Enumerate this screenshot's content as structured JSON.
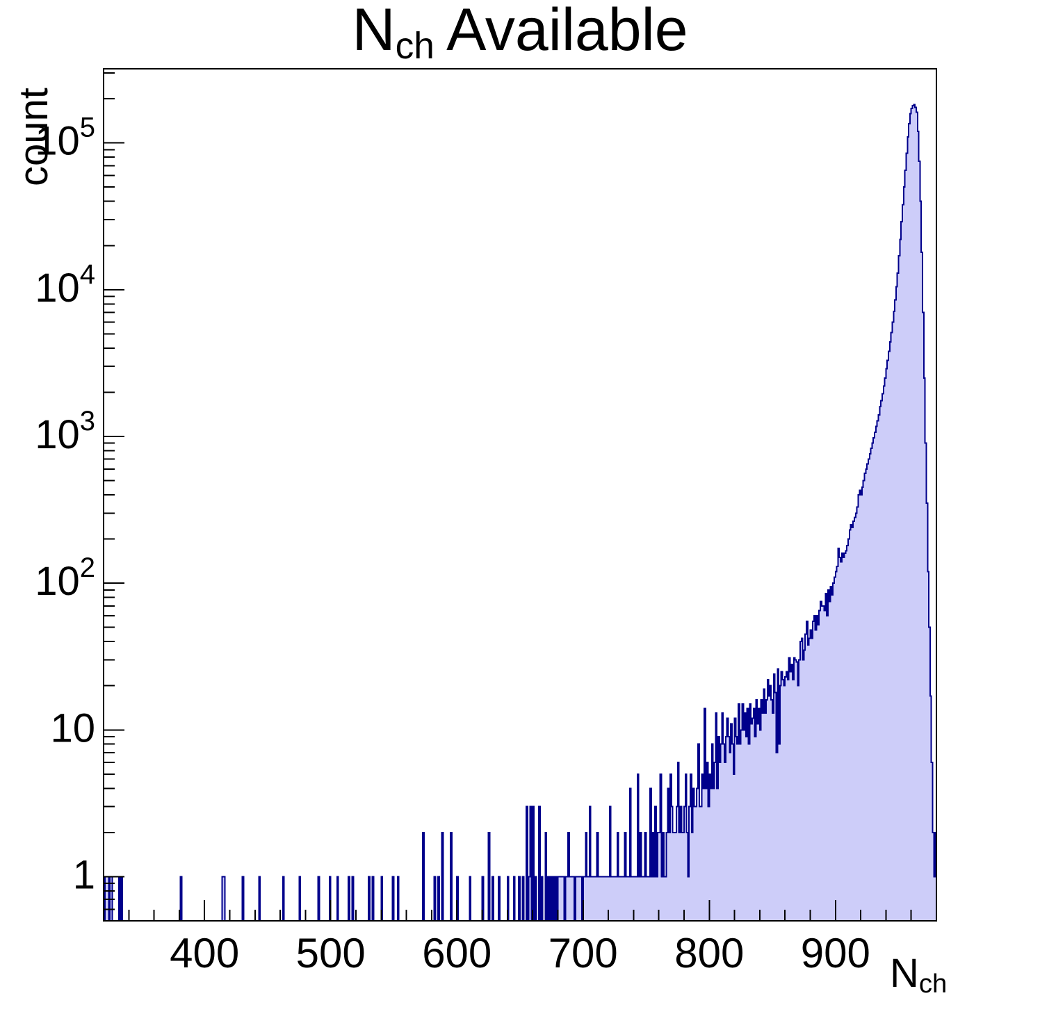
{
  "title": {
    "prefix": "N",
    "subscript": "ch",
    "suffix": "Available"
  },
  "y_axis": {
    "label": "count",
    "log": true,
    "ticks": [
      {
        "value": 1,
        "text": "1"
      },
      {
        "value": 10,
        "text": "10"
      },
      {
        "value": 100,
        "text": "10",
        "exp": "2"
      },
      {
        "value": 1000,
        "text": "10",
        "exp": "3"
      },
      {
        "value": 10000,
        "text": "10",
        "exp": "4"
      },
      {
        "value": 100000,
        "text": "10",
        "exp": "5"
      }
    ]
  },
  "x_axis": {
    "label_prefix": "N",
    "label_subscript": "ch",
    "minor_step": 20,
    "ticks": [
      {
        "value": 400,
        "text": "400"
      },
      {
        "value": 500,
        "text": "500"
      },
      {
        "value": 600,
        "text": "600"
      },
      {
        "value": 700,
        "text": "700"
      },
      {
        "value": 800,
        "text": "800"
      },
      {
        "value": 900,
        "text": "900"
      }
    ]
  },
  "chart_data": {
    "type": "bar",
    "subtype": "step-filled-histogram",
    "title": "N_ch Available",
    "xlabel": "N_ch",
    "ylabel": "count",
    "log_y": true,
    "xlim": [
      320,
      980
    ],
    "ylim": [
      0.5,
      320000
    ],
    "x_start": 320,
    "bin_width": 1,
    "fill_color": "#cdcdf9",
    "line_color": "#00008b",
    "frame_color": "#000000",
    "counts": [
      0,
      1,
      1,
      1,
      0,
      1,
      1,
      0,
      0,
      0,
      0,
      0,
      1,
      0,
      1,
      0,
      0,
      0,
      0,
      0,
      0,
      0,
      0,
      0,
      0,
      0,
      0,
      0,
      0,
      0,
      0,
      0,
      0,
      0,
      0,
      0,
      0,
      0,
      0,
      0,
      0,
      0,
      0,
      0,
      0,
      0,
      0,
      0,
      0,
      0,
      0,
      0,
      0,
      0,
      0,
      0,
      0,
      0,
      0,
      0,
      0,
      1,
      0,
      0,
      0,
      0,
      0,
      0,
      0,
      0,
      0,
      0,
      0,
      0,
      0,
      0,
      0,
      0,
      0,
      0,
      0,
      0,
      0,
      0,
      0,
      0,
      0,
      0,
      0,
      0,
      0,
      0,
      0,
      0,
      1,
      1,
      0,
      0,
      0,
      0,
      0,
      0,
      0,
      0,
      0,
      0,
      0,
      0,
      0,
      0,
      1,
      0,
      0,
      0,
      0,
      0,
      0,
      0,
      0,
      0,
      0,
      0,
      0,
      1,
      0,
      0,
      0,
      0,
      0,
      0,
      0,
      0,
      0,
      0,
      0,
      0,
      0,
      0,
      0,
      0,
      0,
      0,
      1,
      0,
      0,
      0,
      0,
      0,
      0,
      0,
      0,
      0,
      0,
      0,
      0,
      1,
      0,
      0,
      0,
      0,
      0,
      0,
      0,
      0,
      0,
      0,
      0,
      0,
      0,
      0,
      1,
      0,
      0,
      0,
      0,
      0,
      0,
      0,
      0,
      1,
      0,
      0,
      0,
      0,
      0,
      1,
      0,
      0,
      0,
      0,
      0,
      0,
      0,
      0,
      1,
      0,
      0,
      1,
      0,
      0,
      0,
      0,
      0,
      0,
      0,
      0,
      0,
      0,
      0,
      0,
      1,
      0,
      0,
      1,
      0,
      0,
      0,
      0,
      0,
      0,
      1,
      0,
      0,
      0,
      0,
      0,
      0,
      0,
      0,
      1,
      0,
      0,
      0,
      1,
      0,
      0,
      0,
      0,
      0,
      0,
      0,
      0,
      0,
      0,
      0,
      0,
      0,
      0,
      0,
      0,
      0,
      0,
      0,
      2,
      0,
      0,
      0,
      0,
      0,
      0,
      0,
      0,
      1,
      0,
      0,
      1,
      0,
      0,
      2,
      0,
      0,
      0,
      0,
      0,
      0,
      2,
      0,
      0,
      0,
      0,
      1,
      0,
      0,
      0,
      0,
      0,
      0,
      0,
      0,
      0,
      1,
      0,
      0,
      0,
      0,
      0,
      0,
      0,
      0,
      0,
      1,
      0,
      0,
      0,
      0,
      2,
      0,
      0,
      1,
      0,
      0,
      0,
      0,
      1,
      0,
      0,
      0,
      0,
      0,
      0,
      1,
      0,
      0,
      0,
      0,
      1,
      0,
      0,
      0,
      1,
      0,
      0,
      1,
      0,
      0,
      3,
      0,
      1,
      3,
      0,
      3,
      0,
      1,
      0,
      0,
      3,
      0,
      1,
      0,
      0,
      2,
      0,
      1,
      0,
      1,
      0,
      1,
      0,
      1,
      0,
      1,
      1,
      1,
      1,
      1,
      0,
      1,
      1,
      2,
      1,
      1,
      1,
      1,
      0,
      1,
      1,
      1,
      1,
      1,
      0,
      1,
      1,
      2,
      1,
      1,
      3,
      1,
      1,
      1,
      1,
      1,
      2,
      1,
      1,
      1,
      1,
      1,
      1,
      1,
      1,
      1,
      3,
      1,
      1,
      1,
      1,
      1,
      2,
      1,
      1,
      1,
      1,
      1,
      2,
      1,
      1,
      1,
      4,
      1,
      1,
      1,
      1,
      1,
      5,
      1,
      2,
      1,
      1,
      1,
      2,
      1,
      1,
      1,
      4,
      1,
      2,
      1,
      3,
      1,
      2,
      2,
      5,
      1,
      2,
      1,
      1,
      2,
      4,
      2,
      5,
      3,
      2,
      2,
      2,
      3,
      6,
      2,
      3,
      2,
      2,
      3,
      5,
      2,
      1,
      3,
      5,
      2,
      4,
      3,
      3,
      4,
      8,
      3,
      3,
      5,
      4,
      14,
      4,
      6,
      3,
      5,
      4,
      8,
      4,
      6,
      13,
      4,
      9,
      6,
      8,
      13,
      8,
      6,
      9,
      12,
      9,
      7,
      11,
      8,
      5,
      12,
      9,
      8,
      15,
      8,
      10,
      15,
      10,
      13,
      9,
      14,
      8,
      15,
      11,
      12,
      14,
      9,
      16,
      11,
      14,
      10,
      16,
      13,
      19,
      13,
      16,
      22,
      17,
      20,
      16,
      13,
      24,
      18,
      7,
      26,
      8,
      20,
      25,
      22,
      20,
      23,
      25,
      22,
      31,
      25,
      28,
      22,
      31,
      30,
      29,
      20,
      30,
      40,
      42,
      30,
      35,
      45,
      55,
      38,
      42,
      48,
      42,
      55,
      60,
      48,
      60,
      52,
      65,
      75,
      70,
      70,
      65,
      85,
      60,
      90,
      75,
      95,
      83,
      100,
      110,
      120,
      130,
      173,
      150,
      140,
      160,
      150,
      160,
      166,
      180,
      200,
      230,
      250,
      240,
      265,
      280,
      300,
      330,
      400,
      430,
      400,
      450,
      500,
      560,
      600,
      650,
      700,
      760,
      830,
      900,
      980,
      1070,
      1170,
      1280,
      1400,
      1600,
      1750,
      1960,
      2200,
      2500,
      2900,
      3300,
      3800,
      4400,
      5100,
      6000,
      7100,
      8500,
      10500,
      13000,
      17000,
      22000,
      29000,
      38000,
      50000,
      65000,
      85000,
      110000,
      135000,
      158000,
      172000,
      180000,
      182000,
      175000,
      162000,
      120000,
      75000,
      40000,
      18000,
      7000,
      2500,
      900,
      350,
      120,
      50,
      17,
      6,
      2,
      1,
      2
    ]
  }
}
